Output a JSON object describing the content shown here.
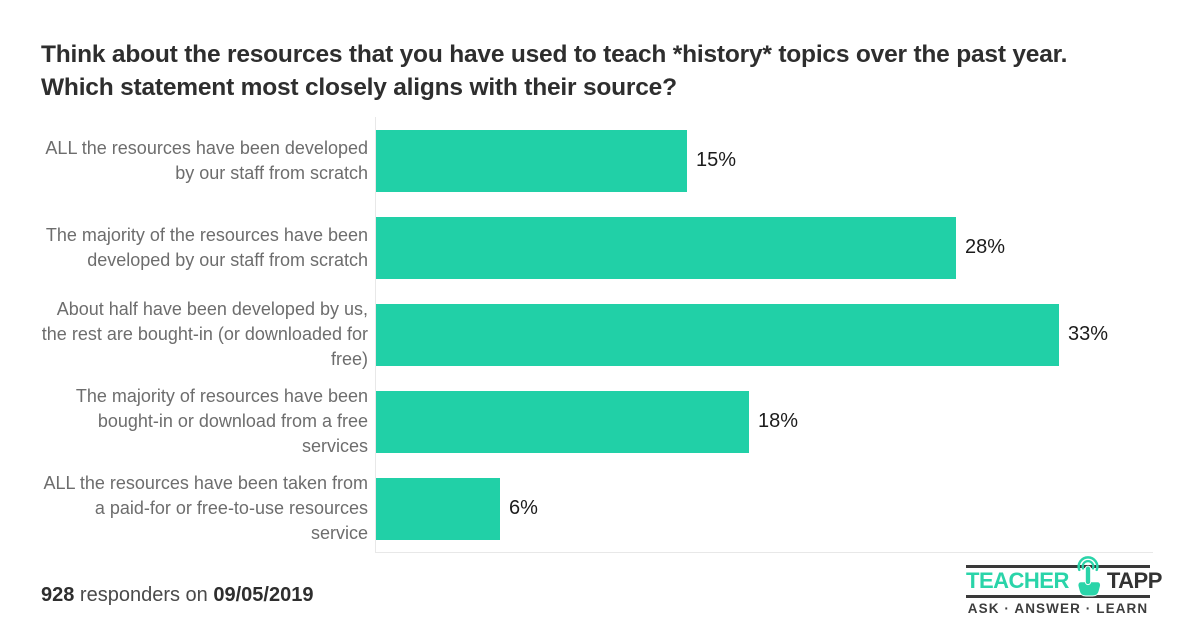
{
  "page": {
    "background": "#ffffff"
  },
  "title": "Think about the resources that you have used to teach *history* topics over the past year. Which statement most closely aligns with their source?",
  "chart_data": {
    "type": "bar",
    "orientation": "horizontal",
    "title": "Think about the resources that you have used to teach *history* topics over the past year. Which statement most closely aligns with their source?",
    "categories": [
      "ALL the resources have been developed by our staff from scratch",
      "The majority of the resources have been developed by our staff from scratch",
      "About half have been developed by us, the rest are bought-in (or downloaded for free)",
      "The majority of resources have been bought-in or download from a free services",
      "ALL the resources have been taken from a paid-for or free-to-use resources service"
    ],
    "values": [
      15,
      28,
      33,
      18,
      6
    ],
    "value_labels": [
      "15%",
      "28%",
      "33%",
      "18%",
      "6%"
    ],
    "unit": "%",
    "xlim": [
      0,
      38
    ],
    "grid": false,
    "legend": "none",
    "value_label_position": "right-of-bar",
    "bar_color": "#21d0a7"
  },
  "footer": {
    "count": "928",
    "connector": " responders on ",
    "date": "09/05/2019"
  },
  "logo": {
    "brand_primary": "TEACHER",
    "brand_secondary": "TAPP",
    "tagline": "ASK · ANSWER · LEARN",
    "icon": "tap-hand-icon",
    "color_primary": "#2ad4a9",
    "color_secondary": "#333333"
  },
  "colors": {
    "bar": "#21d0a7",
    "title_text": "#2e2e2e",
    "category_label": "#6d6d6d",
    "value_label": "#1c1c1c",
    "axis_line": "#e8e8e8",
    "logo_dark": "#3a3a3a"
  }
}
